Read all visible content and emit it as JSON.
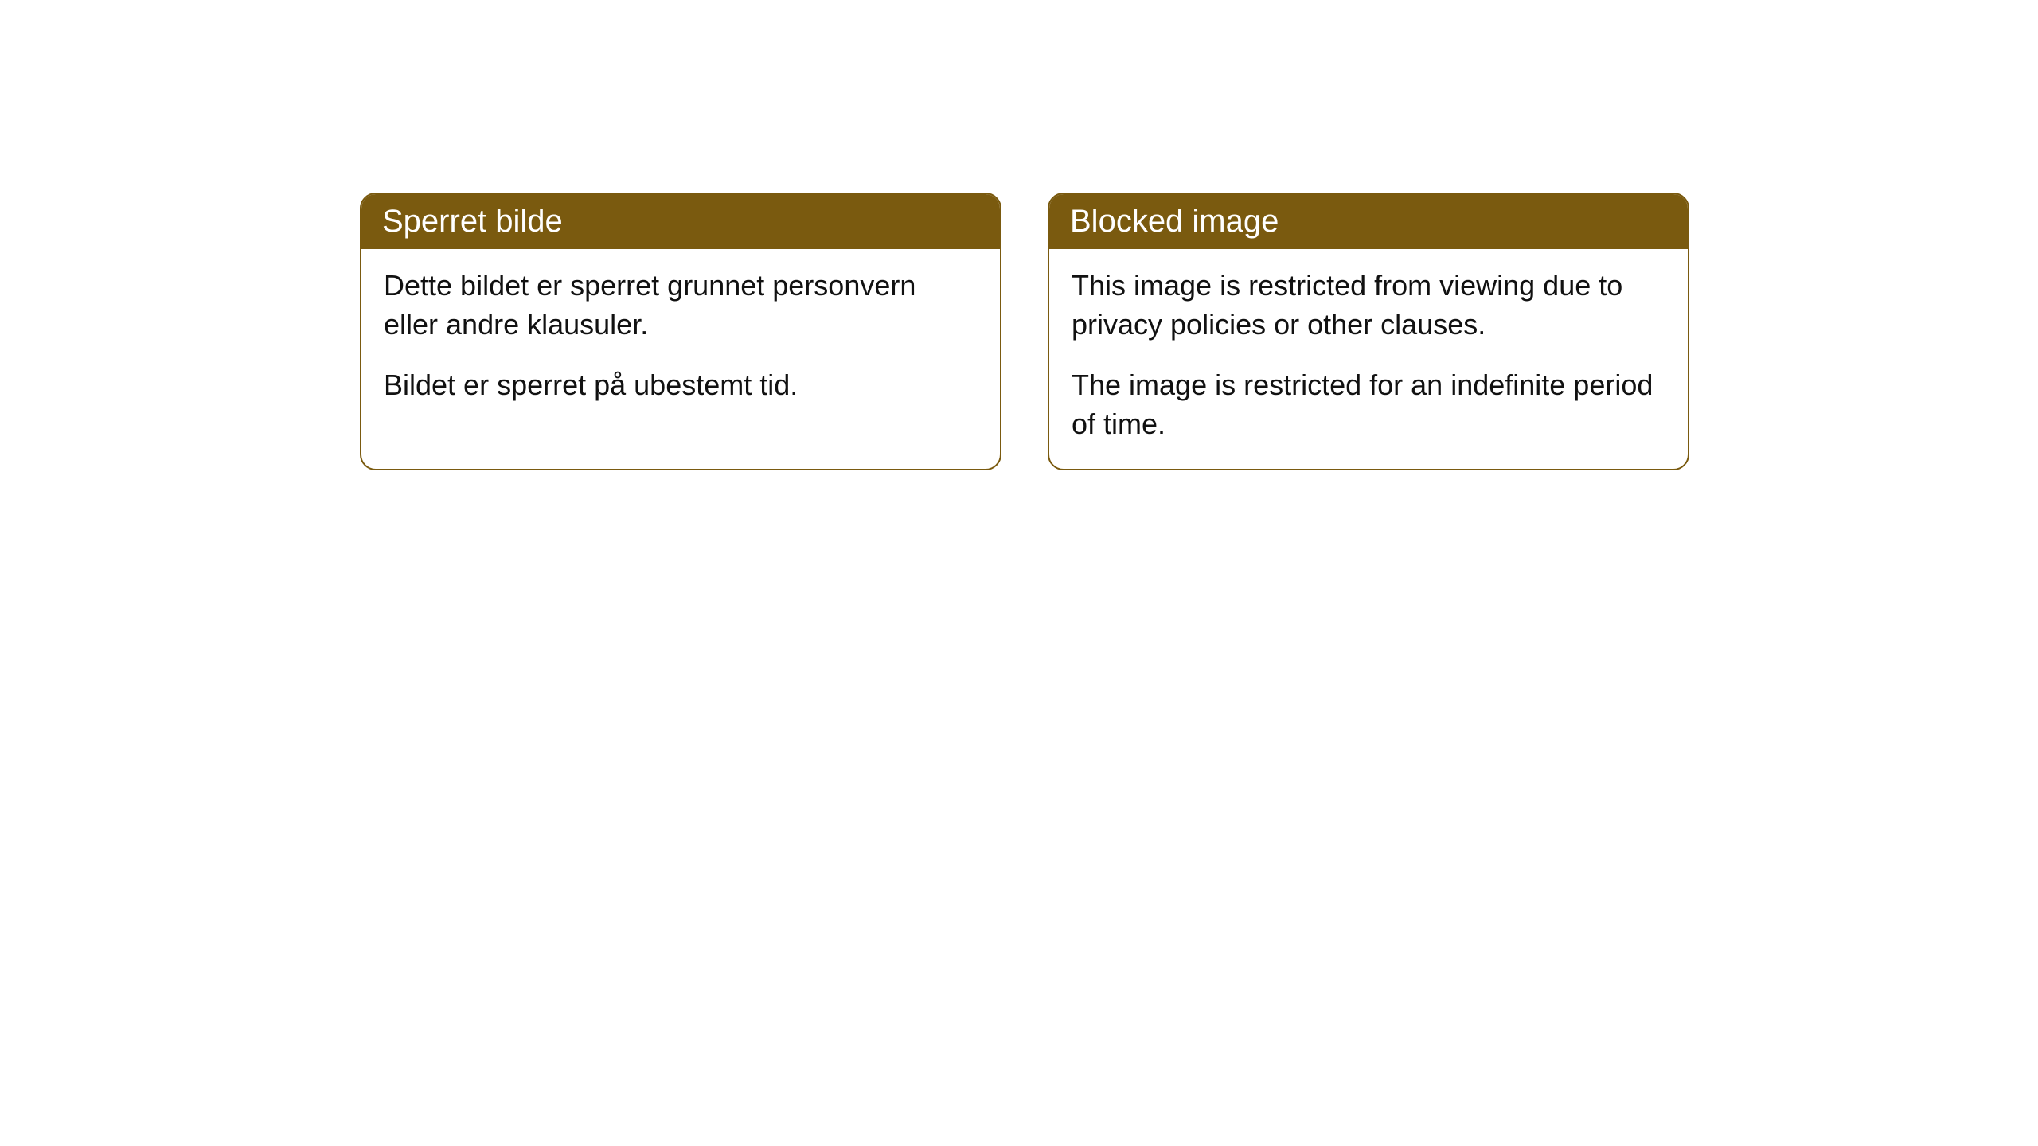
{
  "cards": [
    {
      "title": "Sperret bilde",
      "paragraph1": "Dette bildet er sperret grunnet personvern eller andre klausuler.",
      "paragraph2": "Bildet er sperret på ubestemt tid."
    },
    {
      "title": "Blocked image",
      "paragraph1": "This image is restricted from viewing due to privacy policies or other clauses.",
      "paragraph2": "The image is restricted for an indefinite period of time."
    }
  ],
  "styling": {
    "header_background": "#7a5a0f",
    "header_text_color": "#ffffff",
    "body_text_color": "#111111",
    "card_border_color": "#7a5a0f",
    "card_background": "#ffffff",
    "page_background": "#ffffff",
    "border_radius": 20,
    "title_fontsize": 40,
    "body_fontsize": 36
  }
}
